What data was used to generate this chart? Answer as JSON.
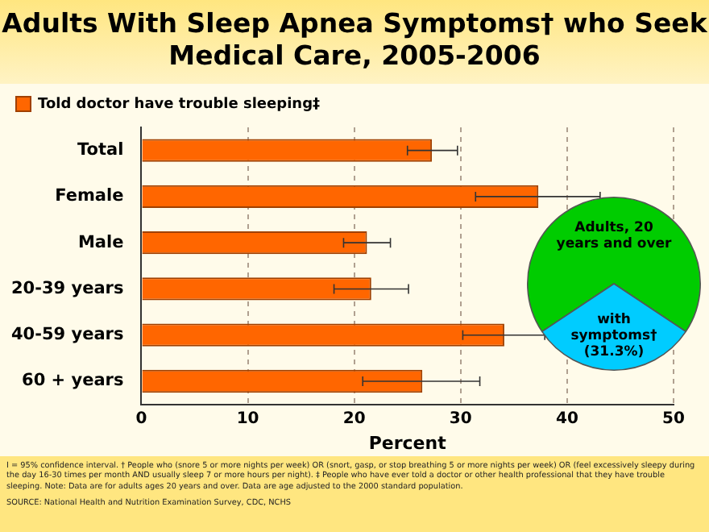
{
  "chart_data": [
    {
      "type": "bar",
      "orientation": "horizontal",
      "title": "Adults With Sleep Apnea Symptoms† who Seek Medical Care, 2005-2006",
      "xlabel": "Percent",
      "categories": [
        "Total",
        "Female",
        "Male",
        "20-39 years",
        "40-59 years",
        "60 + years"
      ],
      "series": [
        {
          "name": "Told doctor have trouble sleeping‡",
          "color": "#ff6600",
          "values": [
            27.3,
            37.3,
            21.2,
            21.6,
            34.1,
            26.4
          ],
          "errors": [
            [
              25.0,
              29.7
            ],
            [
              31.4,
              43.1
            ],
            [
              19.0,
              23.4
            ],
            [
              18.1,
              25.1
            ],
            [
              30.2,
              37.9
            ],
            [
              20.8,
              31.8
            ]
          ]
        }
      ],
      "xlim": [
        0,
        50
      ],
      "xticks": [
        0,
        10,
        20,
        30,
        40,
        50
      ],
      "grid": "x",
      "legend": "top",
      "annotations": [
        "I = 95% confidence interval. † People who (snore 5 or more nights per week) OR (snort, gasp, or stop breathing 5 or more nights per week) OR (feel excessively sleepy during the day 16-30 times per month AND usually sleep 7 or more hours per night). ‡ People who have ever told a doctor or other health professional that they have trouble sleeping. Note: Data are for adults ages 20 years and over. Data are age adjusted to the 2000 standard population.",
        "SOURCE: National Health and Nutrition Examination Survey, CDC, NCHS"
      ]
    },
    {
      "type": "pie",
      "categories": [
        "Adults, 20 years and over",
        "with symptoms†"
      ],
      "values": [
        68.7,
        31.3
      ],
      "colors": [
        "#00cc00",
        "#00ccff"
      ],
      "value_labels": [
        null,
        "(31.3%)"
      ]
    }
  ]
}
